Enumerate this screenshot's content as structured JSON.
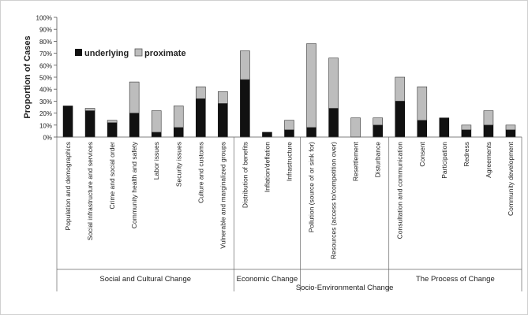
{
  "chart_data": {
    "type": "bar",
    "stacked": true,
    "ylabel": "Proportion of Cases",
    "ylim": [
      0,
      100
    ],
    "yticks": [
      "0%",
      "10%",
      "20%",
      "30%",
      "40%",
      "50%",
      "60%",
      "70%",
      "80%",
      "90%",
      "100%"
    ],
    "legend_position": "top-left",
    "categories": [
      "Population and demographics",
      "Social infrastructure and services",
      "Crime and social order",
      "Community health and safety",
      "Labor issues",
      "Security issues",
      "Culture and customs",
      "Vulnerable and marginalized groups",
      "Distribution of benefits",
      "Inflation/deflation",
      "Infrastructure",
      "Pollution (source of or sink for)",
      "Resources (access to/competition over)",
      "Resettlement",
      "Disturbance",
      "Consultation and communication",
      "Consent",
      "Participation",
      "Redress",
      "Agreements",
      "Community development"
    ],
    "series": [
      {
        "name": "underlying",
        "color": "#111111",
        "values": [
          26,
          22,
          12,
          20,
          4,
          8,
          32,
          28,
          48,
          4,
          6,
          8,
          24,
          0,
          10,
          30,
          14,
          16,
          6,
          10,
          6
        ]
      },
      {
        "name": "proximate",
        "color": "#bdbdbd",
        "values": [
          0,
          2,
          2,
          26,
          18,
          18,
          10,
          10,
          24,
          0,
          8,
          70,
          42,
          16,
          6,
          20,
          28,
          0,
          4,
          12,
          4
        ]
      }
    ],
    "groups": [
      {
        "label": "Social and Cultural Change",
        "count": 8
      },
      {
        "label": "Economic Change",
        "count": 3
      },
      {
        "label": "Socio-Environmental Change",
        "count": 4
      },
      {
        "label": "The Process of Change",
        "count": 6
      }
    ]
  }
}
